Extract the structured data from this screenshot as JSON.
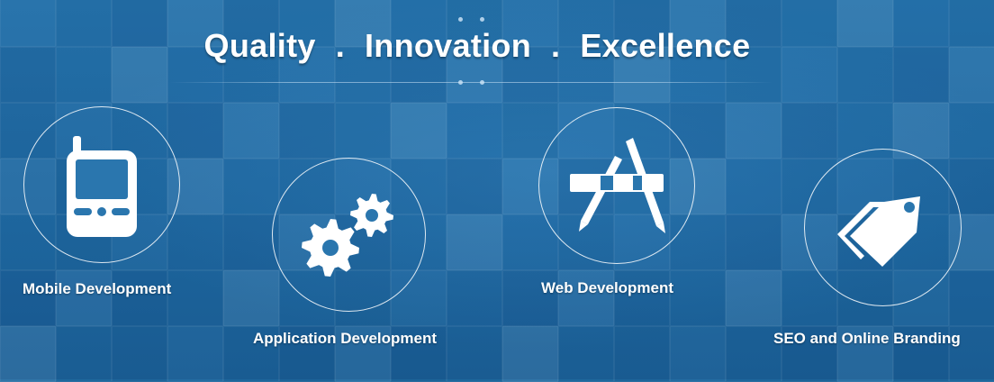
{
  "headline": {
    "word1": "Quality",
    "sep1": ".",
    "word2": "Innovation",
    "sep2": ".",
    "word3": "Excellence"
  },
  "services": [
    {
      "label": "Mobile Development",
      "icon": "mobile-phone-icon"
    },
    {
      "label": "Application Development",
      "icon": "gears-icon"
    },
    {
      "label": "Web Development",
      "icon": "app-store-icon"
    },
    {
      "label": "SEO and Online Branding",
      "icon": "tags-icon"
    }
  ],
  "colors": {
    "background": "#1f6aa0",
    "text": "#ffffff"
  }
}
